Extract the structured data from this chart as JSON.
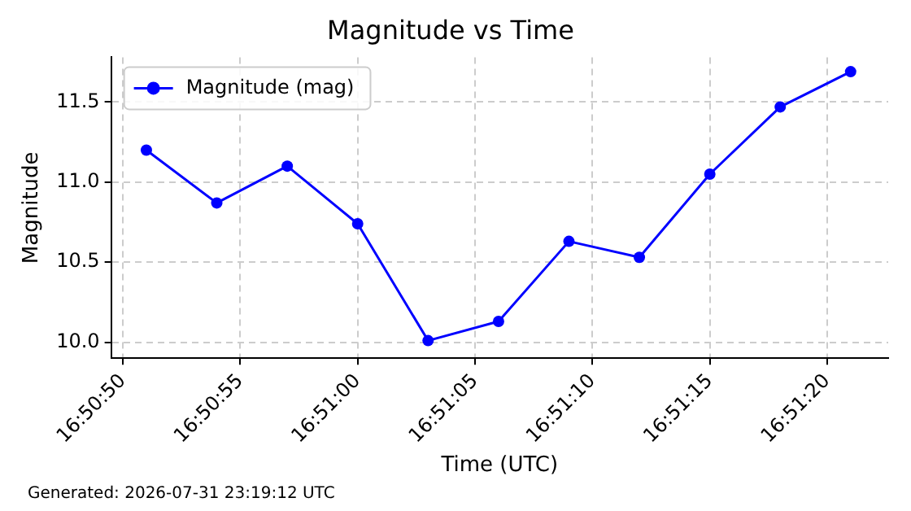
{
  "chart_data": {
    "type": "line",
    "title": "Magnitude vs Time",
    "xlabel": "Time (UTC)",
    "ylabel": "Magnitude",
    "x": [
      16.8475,
      16.848333,
      16.849167,
      16.85,
      16.850833,
      16.851667,
      16.8525,
      16.853333,
      16.854167,
      16.855,
      16.855833
    ],
    "series": [
      {
        "name": "Magnitude (mag)",
        "color": "#0000ff",
        "values": [
          11.2,
          10.87,
          11.1,
          10.74,
          10.01,
          10.13,
          10.63,
          10.53,
          11.05,
          11.47,
          11.69
        ]
      }
    ],
    "xlim": [
      16.847083,
      16.856278
    ],
    "xticks": [
      {
        "value": 16.847222,
        "label": "16:50:50"
      },
      {
        "value": 16.848611,
        "label": "16:50:55"
      },
      {
        "value": 16.85,
        "label": "16:51:00"
      },
      {
        "value": 16.851389,
        "label": "16:51:05"
      },
      {
        "value": 16.852778,
        "label": "16:51:10"
      },
      {
        "value": 16.854167,
        "label": "16:51:15"
      },
      {
        "value": 16.855556,
        "label": "16:51:20"
      }
    ],
    "ylim": [
      9.9,
      11.78
    ],
    "yticks": [
      {
        "value": 10,
        "label": "10.0"
      },
      10.5,
      {
        "value": 11,
        "label": "11.0"
      },
      11.5
    ],
    "grid": true,
    "legend": "top left",
    "marker": "circle",
    "line_style": "solid",
    "annotations": [
      "Generated: 2026-07-31 23:19:12 UTC"
    ]
  }
}
